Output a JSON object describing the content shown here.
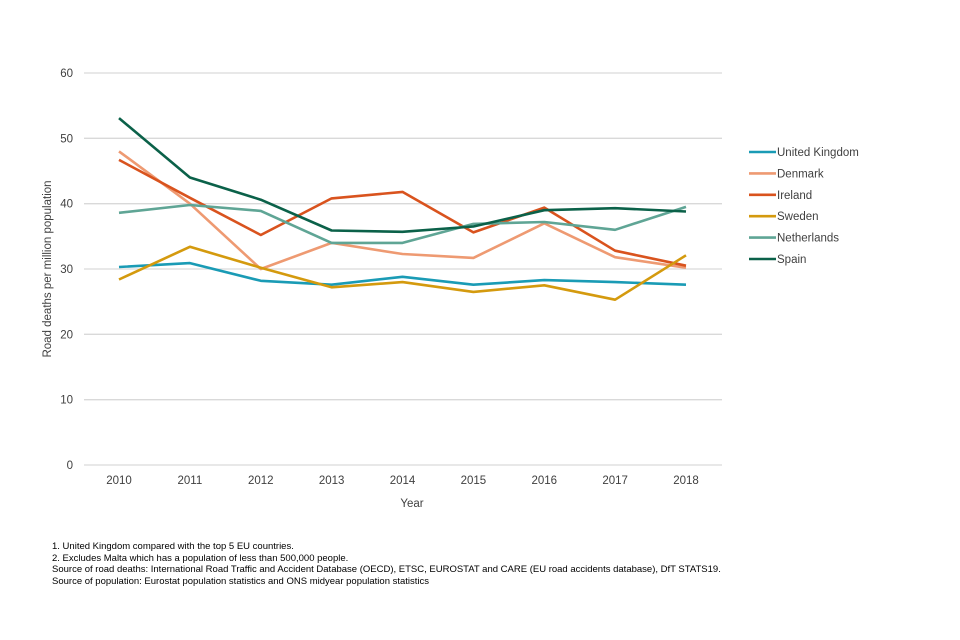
{
  "chart_data": {
    "type": "line",
    "title": "",
    "xlabel": "Year",
    "ylabel": "Road deaths per million population",
    "ylim": [
      0,
      60
    ],
    "yticks": [
      0,
      10,
      20,
      30,
      40,
      50,
      60
    ],
    "grid": true,
    "legend_position": "right",
    "x": [
      "2010",
      "2011",
      "2012",
      "2013",
      "2014",
      "2015",
      "2016",
      "2017",
      "2018"
    ],
    "series": [
      {
        "name": "United Kingdom",
        "color": "#1a9bb5",
        "values": [
          30.3,
          30.9,
          28.2,
          27.6,
          28.8,
          27.6,
          28.3,
          28.0,
          27.6
        ]
      },
      {
        "name": "Denmark",
        "color": "#ee9a72",
        "values": [
          48.0,
          40.0,
          30.0,
          34.0,
          32.3,
          31.7,
          37.0,
          31.8,
          30.2
        ]
      },
      {
        "name": "Ireland",
        "color": "#d9531e",
        "values": [
          46.7,
          40.9,
          35.2,
          40.8,
          41.8,
          35.6,
          39.4,
          32.8,
          30.5
        ]
      },
      {
        "name": "Sweden",
        "color": "#d49a0e",
        "values": [
          28.4,
          33.4,
          30.2,
          27.2,
          28.0,
          26.5,
          27.5,
          25.3,
          32.1
        ]
      },
      {
        "name": "Netherlands",
        "color": "#5fa595",
        "values": [
          38.6,
          39.8,
          38.9,
          34.0,
          34.0,
          36.9,
          37.2,
          36.0,
          39.5
        ]
      },
      {
        "name": "Spain",
        "color": "#0b6149",
        "values": [
          53.1,
          44.0,
          40.6,
          35.9,
          35.7,
          36.5,
          39.0,
          39.3,
          38.8
        ]
      }
    ]
  },
  "notes": [
    "1. United Kingdom compared with the top 5 EU countries.",
    "2. Excludes Malta which has a population of less than 500,000 people.",
    "Source of road deaths: International Road Traffic and Accident Database (OECD), ETSC, EUROSTAT and CARE (EU road accidents database), DfT STATS19.",
    "Source of population: Eurostat population statistics and ONS midyear population statistics"
  ]
}
